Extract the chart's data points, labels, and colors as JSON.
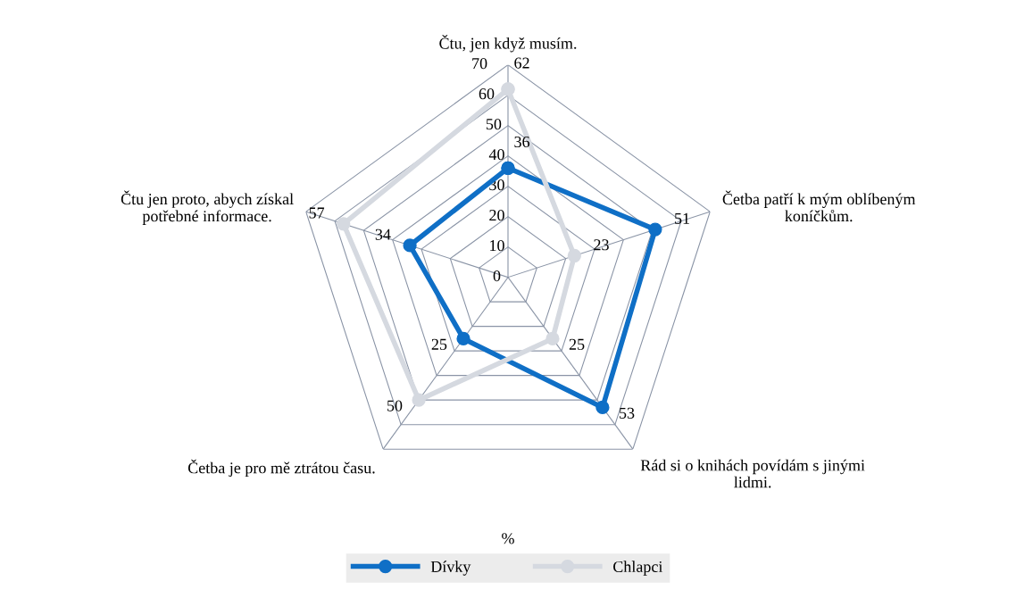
{
  "chart_data": {
    "type": "radar",
    "xlabel": "%",
    "categories": [
      "Čtu, jen když musím.",
      "Četba patří k mým oblíbeným koníčkům.",
      "Rád si o knihách povídám s jinými lidmi.",
      "Četba je pro mě ztrátou času.",
      "Čtu jen proto, abych získal potřebné informace."
    ],
    "series": [
      {
        "name": "Dívky",
        "color": "#0f6fc6",
        "values": [
          36,
          51,
          53,
          25,
          34
        ]
      },
      {
        "name": "Chlapci",
        "color": "#d5d9e0",
        "values": [
          62,
          23,
          25,
          50,
          57
        ]
      }
    ],
    "ylim": [
      0,
      70
    ],
    "yticks": [
      0,
      10,
      20,
      30,
      40,
      50,
      60,
      70
    ],
    "grid": true,
    "data_labels": true,
    "legend": "bottom",
    "marker": "circle",
    "line_style": "solid"
  }
}
